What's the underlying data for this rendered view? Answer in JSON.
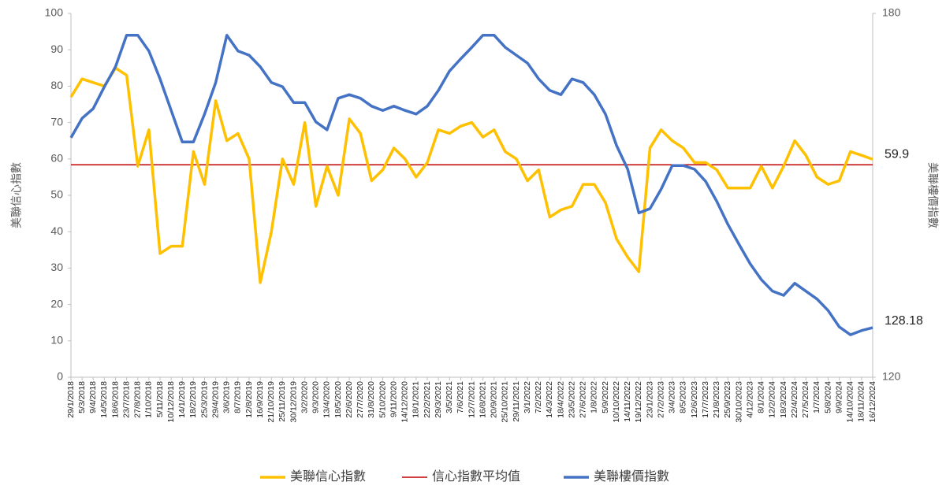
{
  "chart_data": {
    "type": "line",
    "y_label": "美聯信心指數",
    "y2_label": "美聯樓價指數",
    "categories": [
      "29/1/2018",
      "5/3/2018",
      "9/4/2018",
      "14/5/2018",
      "18/6/2018",
      "23/7/2018",
      "27/8/2018",
      "1/10/2018",
      "5/11/2018",
      "10/12/2018",
      "14/1/2019",
      "18/2/2019",
      "25/3/2019",
      "29/4/2019",
      "3/6/2019",
      "8/7/2019",
      "12/8/2019",
      "16/9/2019",
      "21/10/2019",
      "25/11/2019",
      "30/12/2019",
      "3/2/2020",
      "9/3/2020",
      "13/4/2020",
      "18/5/2020",
      "22/6/2020",
      "27/7/2020",
      "31/8/2020",
      "5/10/2020",
      "9/11/2020",
      "14/12/2020",
      "18/1/2021",
      "22/2/2021",
      "29/3/2021",
      "3/5/2021",
      "7/6/2021",
      "12/7/2021",
      "16/8/2021",
      "20/9/2021",
      "25/10/2021",
      "29/11/2021",
      "3/1/2022",
      "7/2/2022",
      "14/3/2022",
      "18/4/2022",
      "23/5/2022",
      "27/6/2022",
      "1/8/2022",
      "5/9/2022",
      "10/10/2022",
      "14/11/2022",
      "19/12/2022",
      "23/1/2023",
      "27/2/2023",
      "3/4/2023",
      "8/5/2023",
      "12/6/2023",
      "17/7/2023",
      "21/8/2023",
      "25/9/2023",
      "30/10/2023",
      "4/12/2023",
      "8/1/2024",
      "12/2/2024",
      "18/3/2024",
      "22/4/2024",
      "27/5/2024",
      "1/7/2024",
      "5/8/2024",
      "9/9/2024",
      "14/10/2024",
      "18/11/2024",
      "16/12/2024"
    ],
    "series": [
      {
        "name": "美聯信心指數",
        "color": "#ffc000",
        "values": [
          77,
          82,
          81,
          80,
          85,
          83,
          58,
          68,
          34,
          36,
          36,
          62,
          53,
          76,
          65,
          67,
          60,
          26,
          40,
          60,
          53,
          70,
          47,
          58,
          50,
          71,
          67,
          54,
          57,
          63,
          60,
          55,
          59,
          68,
          67,
          69,
          70,
          66,
          68,
          62,
          60,
          54,
          57,
          44,
          46,
          47,
          53,
          53,
          48,
          38,
          33,
          29,
          63,
          68,
          65,
          63,
          59,
          59,
          57,
          52,
          52,
          52,
          58,
          52,
          58,
          65,
          61,
          55,
          53,
          54,
          62,
          61,
          59.9
        ]
      },
      {
        "name": "美聯樓價指數",
        "color": "#4472c4",
        "axis": "y2",
        "values": [
          159.5,
          162.7,
          164.3,
          167.9,
          171.2,
          176.4,
          176.4,
          173.8,
          169.2,
          164.0,
          158.8,
          158.8,
          163.4,
          168.6,
          176.4,
          173.8,
          173.1,
          171.2,
          168.6,
          167.9,
          165.3,
          165.3,
          162.1,
          160.8,
          166.0,
          166.6,
          166.0,
          164.7,
          164.0,
          164.7,
          164.0,
          163.4,
          164.7,
          167.3,
          170.5,
          172.5,
          174.4,
          176.4,
          176.4,
          174.4,
          173.1,
          171.8,
          169.2,
          167.3,
          166.6,
          169.2,
          168.6,
          166.6,
          163.4,
          158.2,
          154.3,
          147.1,
          147.8,
          151.0,
          154.9,
          154.9,
          154.3,
          152.3,
          149.0,
          145.2,
          141.9,
          138.7,
          136.1,
          134.2,
          133.5,
          135.5,
          134.2,
          132.9,
          131.0,
          128.3,
          127.0,
          127.7,
          128.18
        ]
      }
    ],
    "average_line": {
      "name": "信心指數平均值",
      "color": "#c00000",
      "value": 58.4
    },
    "ylim": [
      0,
      100
    ],
    "yticks": [
      0,
      10,
      20,
      30,
      40,
      50,
      60,
      70,
      80,
      90,
      100
    ],
    "y2lim": [
      120,
      180
    ],
    "y2ticks": [
      120,
      180
    ],
    "grid": false
  }
}
